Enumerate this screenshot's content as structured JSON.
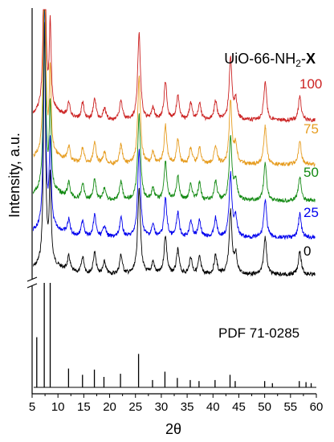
{
  "chart_data": {
    "type": "line",
    "title_main": "UiO-66-NH",
    "title_sub": "2",
    "title_sep": "-",
    "title_var": "X",
    "xlabel": "2θ",
    "ylabel": "Intensity, a.u.",
    "xlim": [
      5,
      60
    ],
    "x_ticks": [
      5,
      10,
      15,
      20,
      25,
      30,
      35,
      40,
      45,
      50,
      55,
      60
    ],
    "x_tick_labels": [
      "5",
      "10",
      "15",
      "20",
      "25",
      "30",
      "35",
      "40",
      "45",
      "50",
      "55",
      "60"
    ],
    "y_axis_break": true,
    "series": [
      {
        "name": "0",
        "color": "#000000"
      },
      {
        "name": "25",
        "color": "#0000ee"
      },
      {
        "name": "50",
        "color": "#138a13"
      },
      {
        "name": "75",
        "color": "#e69c1f"
      },
      {
        "name": "100",
        "color": "#cc2222"
      }
    ],
    "peaks": [
      {
        "x": 7.4,
        "h": 1.0
      },
      {
        "x": 8.5,
        "h": 0.35
      },
      {
        "x": 12.1,
        "h": 0.06
      },
      {
        "x": 14.8,
        "h": 0.07
      },
      {
        "x": 17.1,
        "h": 0.09
      },
      {
        "x": 19.0,
        "h": 0.05
      },
      {
        "x": 22.2,
        "h": 0.08
      },
      {
        "x": 25.7,
        "h": 0.36
      },
      {
        "x": 28.4,
        "h": 0.05
      },
      {
        "x": 30.8,
        "h": 0.16
      },
      {
        "x": 33.2,
        "h": 0.1
      },
      {
        "x": 35.7,
        "h": 0.07
      },
      {
        "x": 37.4,
        "h": 0.07
      },
      {
        "x": 40.5,
        "h": 0.08
      },
      {
        "x": 43.4,
        "h": 0.26
      },
      {
        "x": 44.4,
        "h": 0.08
      },
      {
        "x": 50.1,
        "h": 0.16
      },
      {
        "x": 56.8,
        "h": 0.1
      }
    ],
    "reference": {
      "label": "PDF 71-0285",
      "color": "#000000",
      "sticks": [
        {
          "x": 5.9,
          "h": 0.48
        },
        {
          "x": 7.35,
          "h": 1.0
        },
        {
          "x": 8.5,
          "h": 1.0
        },
        {
          "x": 12.05,
          "h": 0.18
        },
        {
          "x": 14.75,
          "h": 0.12
        },
        {
          "x": 17.05,
          "h": 0.17
        },
        {
          "x": 18.9,
          "h": 0.1
        },
        {
          "x": 22.1,
          "h": 0.13
        },
        {
          "x": 25.6,
          "h": 0.32
        },
        {
          "x": 28.3,
          "h": 0.07
        },
        {
          "x": 30.7,
          "h": 0.15
        },
        {
          "x": 33.1,
          "h": 0.09
        },
        {
          "x": 35.6,
          "h": 0.07
        },
        {
          "x": 37.3,
          "h": 0.06
        },
        {
          "x": 40.4,
          "h": 0.07
        },
        {
          "x": 43.3,
          "h": 0.12
        },
        {
          "x": 44.3,
          "h": 0.06
        },
        {
          "x": 50.0,
          "h": 0.06
        },
        {
          "x": 51.5,
          "h": 0.04
        },
        {
          "x": 56.7,
          "h": 0.06
        },
        {
          "x": 58.0,
          "h": 0.05
        },
        {
          "x": 59.0,
          "h": 0.04
        }
      ]
    }
  }
}
